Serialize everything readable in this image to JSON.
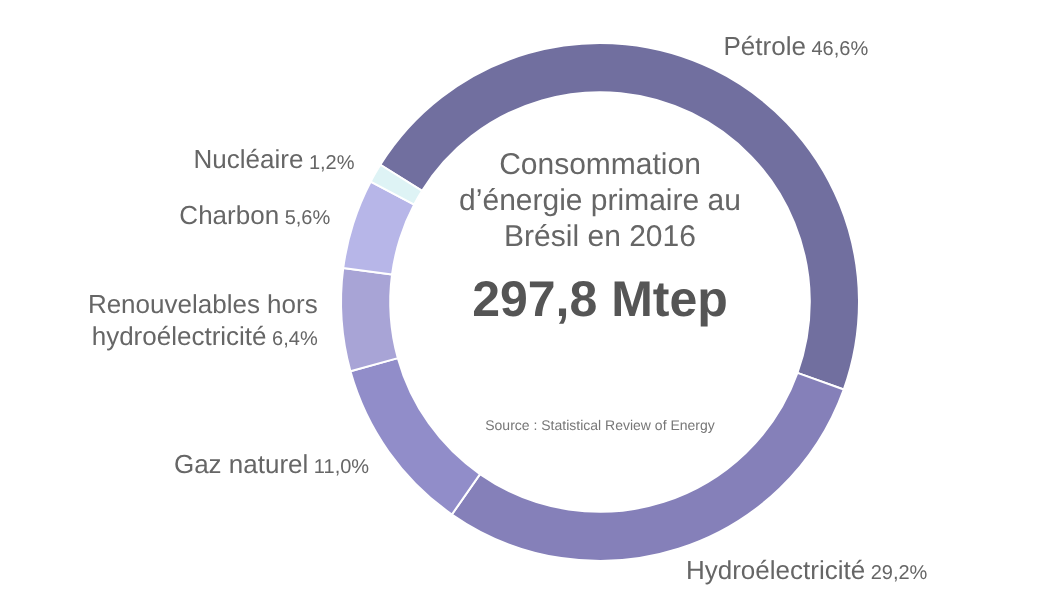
{
  "chart_data": {
    "type": "donut",
    "title": "Consommation d’énergie primaire au Brésil en 2016",
    "subtitle": "297,8 Mtep",
    "categories": [
      "Pétrole",
      "Hydroélectricité",
      "Gaz naturel",
      "Renouvelables hors hydroélectricité",
      "Charbon",
      "Nucléaire"
    ],
    "values": [
      46.6,
      29.2,
      11.0,
      6.4,
      5.6,
      1.2
    ],
    "value_labels": [
      "46,6%",
      "29,2%",
      "11,0%",
      "6,4%",
      "5,6%",
      "1,2%"
    ],
    "colors": [
      "#716f9f",
      "#8580b9",
      "#918dc9",
      "#a8a4d6",
      "#b7b6e8",
      "#def3f5"
    ],
    "annotations": [
      "Source : Statistical Review of Energy"
    ],
    "legend": false
  }
}
